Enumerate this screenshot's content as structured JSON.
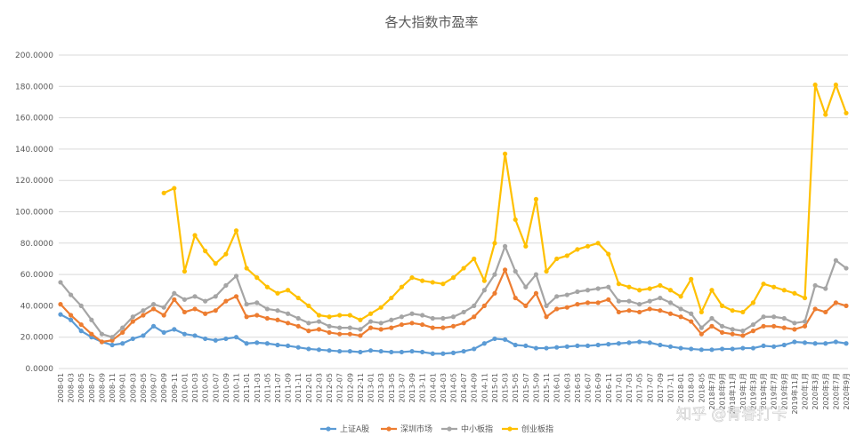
{
  "chart_data": {
    "type": "line",
    "title": "各大指数市盈率",
    "xlabel": "",
    "ylabel": "",
    "ylim": [
      0,
      200
    ],
    "yticks": [
      "0.0000",
      "20.0000",
      "40.0000",
      "60.0000",
      "80.0000",
      "100.0000",
      "120.0000",
      "140.0000",
      "160.0000",
      "180.0000",
      "200.0000"
    ],
    "grid": true,
    "legend_position": "bottom",
    "x": [
      "2008-01",
      "2008-03",
      "2008-05",
      "2008-07",
      "2008-09",
      "2008-11",
      "2009-01",
      "2009-03",
      "2009-05",
      "2009-07",
      "2009-09",
      "2009-11",
      "2010-01",
      "2010-03",
      "2010-05",
      "2010-07",
      "2010-09",
      "2010-11",
      "2011-01",
      "2011-03",
      "2011-05",
      "2011-07",
      "2011-09",
      "2011-11",
      "2012-01",
      "2012-03",
      "2012-05",
      "2012-07",
      "2012-09",
      "2012-11",
      "2013-01",
      "2013-03",
      "2013-05",
      "2013-07",
      "2013-09",
      "2013-11",
      "2014-01",
      "2014-03",
      "2014-05",
      "2014-07",
      "2014-09",
      "2014-11",
      "2015-01",
      "2015-03",
      "2015-05",
      "2015-07",
      "2015-09",
      "2015-11",
      "2016-01",
      "2016-03",
      "2016-05",
      "2016-07",
      "2016-09",
      "2016-11",
      "2017-01",
      "2017-03",
      "2017-05",
      "2017-07",
      "2017-09",
      "2017-11",
      "2018-01",
      "2018-03",
      "2018-05",
      "2018年7月",
      "2018年9月",
      "2018年11月",
      "2019年1月",
      "2019年3月",
      "2019年5月",
      "2019年7月",
      "2019年9月",
      "2019年11月",
      "2020年1月",
      "2020年3月",
      "2020年5月",
      "2020年7月",
      "2020年9月"
    ],
    "series": [
      {
        "name": "上证A股",
        "color": "#5b9bd5",
        "values": [
          34.5,
          31,
          24,
          20,
          17,
          15,
          16,
          19,
          21,
          27,
          23,
          25,
          22,
          21,
          19,
          18,
          19,
          20,
          16,
          16.5,
          16,
          15,
          14.5,
          13.5,
          12.5,
          12,
          11.5,
          11,
          11,
          10.5,
          11.5,
          11,
          10.5,
          10.5,
          11,
          10.5,
          9.5,
          9.5,
          10,
          11,
          12.5,
          16,
          19,
          18.5,
          15,
          14.5,
          13,
          13,
          13.5,
          14,
          14.5,
          14.5,
          15,
          15.5,
          16,
          16.5,
          17,
          16.5,
          15,
          14,
          13,
          12.5,
          12,
          12,
          12.5,
          12.5,
          13,
          13,
          14.5,
          14,
          15,
          17,
          16.5,
          16,
          16,
          17,
          16
        ]
      },
      {
        "name": "深圳市场",
        "color": "#ed7d31",
        "values": [
          41,
          34,
          28,
          22,
          17,
          18,
          23,
          30,
          34,
          38,
          34,
          44,
          36,
          38,
          35,
          37,
          43,
          46,
          33,
          34,
          32,
          31,
          29,
          27,
          24,
          25,
          23,
          22,
          22,
          21,
          26,
          25,
          26,
          28,
          29,
          28,
          26,
          26,
          27,
          29,
          33,
          40,
          48,
          63,
          45,
          40,
          48,
          33,
          38,
          39,
          41,
          42,
          42,
          44,
          36,
          37,
          36,
          38,
          37,
          35,
          33,
          30,
          22,
          27,
          23,
          22,
          21,
          24,
          27,
          27,
          26,
          25,
          27,
          38,
          36,
          42,
          40
        ]
      },
      {
        "name": "中小板指",
        "color": "#a5a5a5",
        "values": [
          55,
          47,
          40,
          31,
          22,
          20,
          26,
          33,
          37,
          41,
          39,
          48,
          44,
          46,
          43,
          46,
          53,
          59,
          41,
          42,
          38,
          37,
          35,
          32,
          29,
          30,
          27,
          26,
          26,
          25,
          30,
          29,
          31,
          33,
          35,
          34,
          32,
          32,
          33,
          36,
          40,
          50,
          60,
          78,
          62,
          52,
          60,
          40,
          46,
          47,
          49,
          50,
          51,
          52,
          43,
          43,
          41,
          43,
          45,
          42,
          38,
          35,
          26,
          32,
          27,
          25,
          24,
          28,
          33,
          33,
          32,
          29,
          30,
          53,
          51,
          69,
          64
        ]
      },
      {
        "name": "创业板指",
        "color": "#ffc000",
        "values": [
          null,
          null,
          null,
          null,
          null,
          null,
          null,
          null,
          null,
          null,
          112,
          115,
          62,
          85,
          75,
          67,
          73,
          88,
          64,
          58,
          52,
          48,
          50,
          45,
          40,
          34,
          33,
          34,
          34,
          31,
          35,
          39,
          45,
          52,
          58,
          56,
          55,
          54,
          58,
          64,
          70,
          56,
          80,
          137,
          95,
          78,
          108,
          62,
          70,
          72,
          76,
          78,
          80,
          73,
          54,
          52,
          50,
          51,
          53,
          50,
          46,
          57,
          36,
          50,
          40,
          37,
          36,
          42,
          54,
          52,
          50,
          48,
          45,
          181,
          162,
          181,
          163
        ]
      }
    ]
  }
}
